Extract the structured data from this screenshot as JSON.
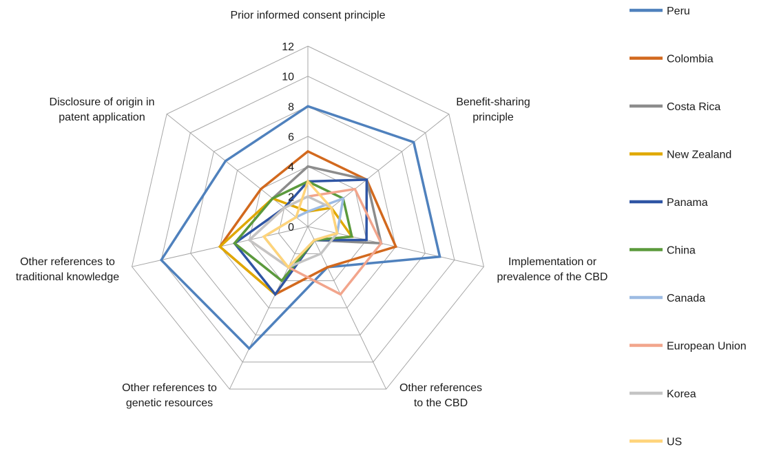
{
  "chart_data": {
    "type": "radar",
    "title": "",
    "axes": [
      [
        "Prior informed consent principle"
      ],
      [
        "Benefit-sharing",
        "principle"
      ],
      [
        "Implementation or",
        "prevalence of the CBD"
      ],
      [
        "Other references",
        "to the CBD"
      ],
      [
        "Other references to",
        "genetic resources"
      ],
      [
        "Other references to",
        "traditional knowledge"
      ],
      [
        "Disclosure of origin in",
        "patent application"
      ]
    ],
    "rlim": [
      0,
      12
    ],
    "ticks": [
      0,
      2,
      4,
      6,
      8,
      10,
      12
    ],
    "grid": true,
    "legend_position": "right",
    "series": [
      {
        "name": "Peru",
        "color": "#4f81bd",
        "values": [
          8,
          9,
          9,
          3,
          9,
          10,
          7
        ]
      },
      {
        "name": "Colombia",
        "color": "#d2691e",
        "values": [
          5,
          5,
          6,
          3,
          5,
          6,
          4
        ]
      },
      {
        "name": "Costa Rica",
        "color": "#8c8c8c",
        "values": [
          4,
          5,
          5,
          1,
          4,
          5,
          3
        ]
      },
      {
        "name": "New Zealand",
        "color": "#e0a800",
        "values": [
          1,
          2,
          3,
          1,
          5,
          6,
          3
        ]
      },
      {
        "name": "Panama",
        "color": "#2f55a4",
        "values": [
          3,
          5,
          4,
          1,
          5,
          5,
          2
        ]
      },
      {
        "name": "China",
        "color": "#5b9a3c",
        "values": [
          3,
          3,
          3,
          1,
          4,
          5,
          3
        ]
      },
      {
        "name": "Canada",
        "color": "#9dbbe3",
        "values": [
          1,
          3,
          2,
          1,
          3,
          3,
          1
        ]
      },
      {
        "name": "European Union",
        "color": "#f2a58c",
        "values": [
          2,
          4,
          5,
          5,
          3,
          4,
          2
        ]
      },
      {
        "name": "Korea",
        "color": "#c4c4c4",
        "values": [
          2,
          2,
          2,
          2,
          3,
          4,
          2
        ]
      },
      {
        "name": "US",
        "color": "#ffd47a",
        "values": [
          3,
          2,
          2,
          1,
          3,
          3,
          1
        ]
      }
    ]
  }
}
